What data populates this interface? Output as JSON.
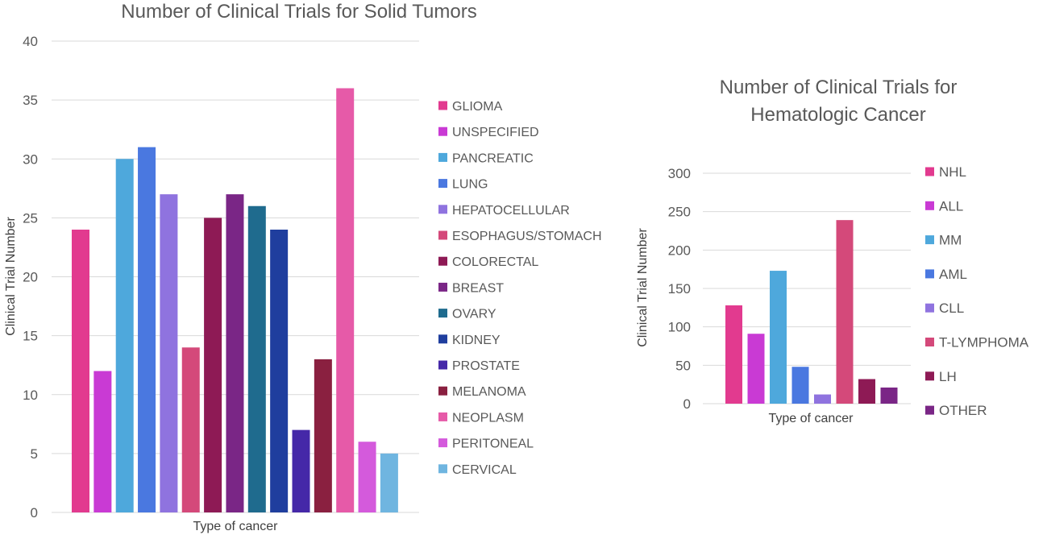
{
  "chart_data": [
    {
      "type": "bar",
      "title": "Number of Clinical Trials for Solid Tumors",
      "xlabel": "Type of cancer",
      "ylabel": "Clinical Trial Number",
      "ylim": [
        0,
        40
      ],
      "yticks": [
        "0",
        "5",
        "10",
        "15",
        "20",
        "25",
        "30",
        "35",
        "40"
      ],
      "legend_position": "right",
      "categories": [
        "GLIOMA",
        "UNSPECIFIED",
        "PANCREATIC",
        "LUNG",
        "HEPATOCELLULAR",
        "ESOPHAGUS/STOMACH",
        "COLORECTAL",
        "BREAST",
        "OVARY",
        "KIDNEY",
        "PROSTATE",
        "MELANOMA",
        "NEOPLASM",
        "PERITONEAL",
        "CERVICAL"
      ],
      "values": [
        24,
        12,
        30,
        31,
        27,
        14,
        25,
        27,
        26,
        24,
        7,
        13,
        36,
        6,
        5
      ],
      "colors": [
        "#e23a8f",
        "#c93ad4",
        "#4ea8dc",
        "#4a78e0",
        "#8f73df",
        "#d4497a",
        "#8e1a55",
        "#7a2686",
        "#1f6b8e",
        "#1f3e9e",
        "#4528a8",
        "#8a2040",
        "#e65aa8",
        "#d45adc",
        "#6fb5e0"
      ]
    },
    {
      "type": "bar",
      "title": "Number of Clinical Trials for Hematologic Cancer",
      "title_lines": [
        "Number of Clinical Trials for",
        "Hematologic Cancer"
      ],
      "xlabel": "Type of cancer",
      "ylabel": "Clinical Trial Number",
      "ylim": [
        0,
        300
      ],
      "yticks": [
        "0",
        "50",
        "100",
        "150",
        "200",
        "250",
        "300"
      ],
      "legend_position": "right",
      "categories": [
        "NHL",
        "ALL",
        "MM",
        "AML",
        "CLL",
        "T-LYMPHOMA",
        "LH",
        "OTHER"
      ],
      "values": [
        128,
        91,
        173,
        48,
        12,
        239,
        32,
        21
      ],
      "colors": [
        "#e23a8f",
        "#c93ad4",
        "#4ea8dc",
        "#4a78e0",
        "#8f73df",
        "#d4497a",
        "#8e1a55",
        "#7a2686"
      ]
    }
  ]
}
